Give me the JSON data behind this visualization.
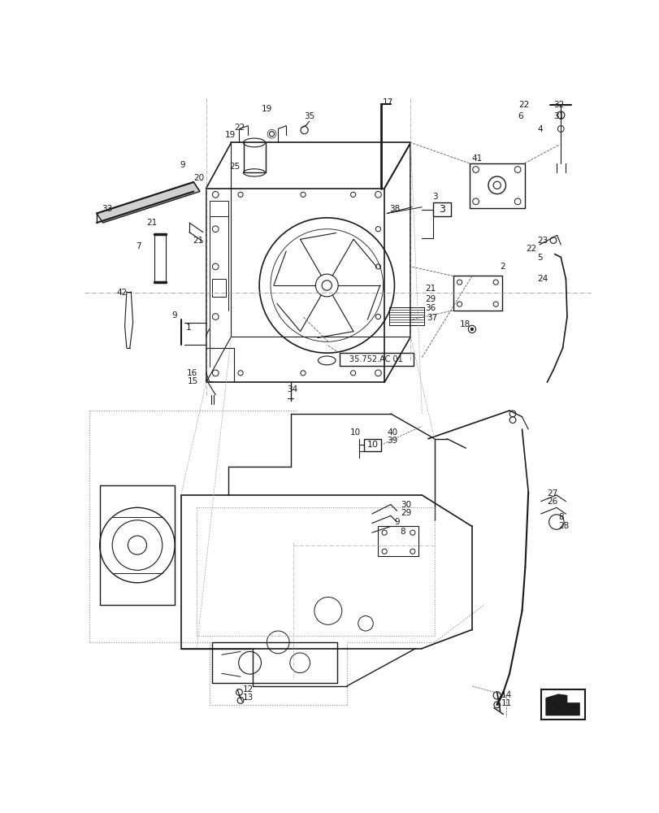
{
  "background_color": "#ffffff",
  "line_color": "#1a1a1a",
  "dash_color": "#555555",
  "dot_color": "#888888",
  "label_fontsize": 7.5,
  "box_label": "35.752.AC 01",
  "box3_label": "3",
  "box10_label": "10"
}
